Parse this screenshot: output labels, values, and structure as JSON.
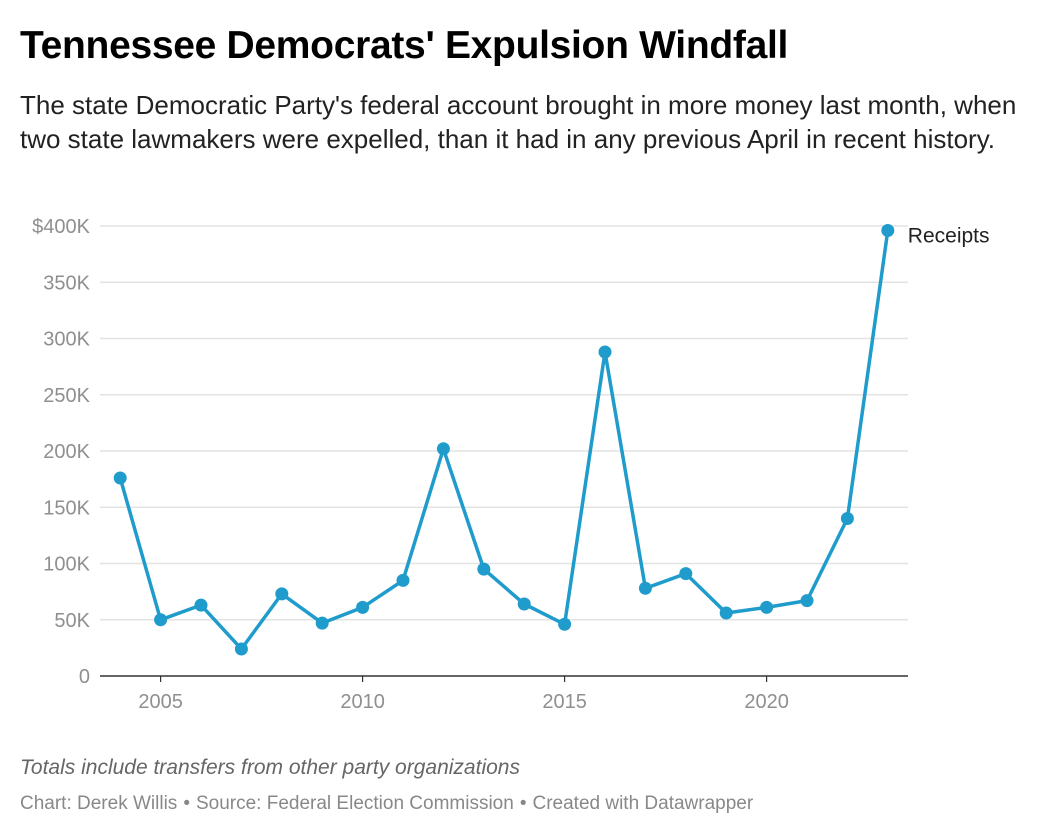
{
  "title": "Tennessee Democrats' Expulsion Windfall",
  "subtitle": "The state Democratic Party's federal account brought in more money last month, when two state lawmakers were expelled, than it had in any previous April in recent history.",
  "note": "Totals include transfers from other party organizations",
  "credits": {
    "chart": "Chart: Derek Willis",
    "source": "Source: Federal Election Commission",
    "tool": "Created with Datawrapper",
    "separator": "•"
  },
  "colors": {
    "line": "#1f9ccb",
    "grid": "#e3e3e3",
    "tick_label": "#8f8f8f",
    "axis": "#333333"
  },
  "chart_data": {
    "type": "line",
    "title": "",
    "xlabel": "",
    "ylabel": "",
    "x": [
      2004,
      2005,
      2006,
      2007,
      2008,
      2009,
      2010,
      2011,
      2012,
      2013,
      2014,
      2015,
      2016,
      2017,
      2018,
      2019,
      2020,
      2021,
      2022,
      2023
    ],
    "series": [
      {
        "name": "Receipts",
        "values": [
          176000,
          50000,
          63000,
          24000,
          73000,
          47000,
          61000,
          85000,
          202000,
          95000,
          64000,
          46000,
          288000,
          78000,
          91000,
          56000,
          61000,
          67000,
          140000,
          396000
        ]
      }
    ],
    "ylim": [
      0,
      400000
    ],
    "y_ticks": [
      0,
      50000,
      100000,
      150000,
      200000,
      250000,
      300000,
      350000,
      400000
    ],
    "y_tick_labels": [
      "0",
      "50K",
      "100K",
      "150K",
      "200K",
      "250K",
      "300K",
      "350K",
      "$400K"
    ],
    "x_ticks": [
      2005,
      2010,
      2015,
      2020
    ],
    "x_tick_labels": [
      "2005",
      "2010",
      "2015",
      "2020"
    ],
    "grid": true,
    "legend": "direct label at line end"
  }
}
